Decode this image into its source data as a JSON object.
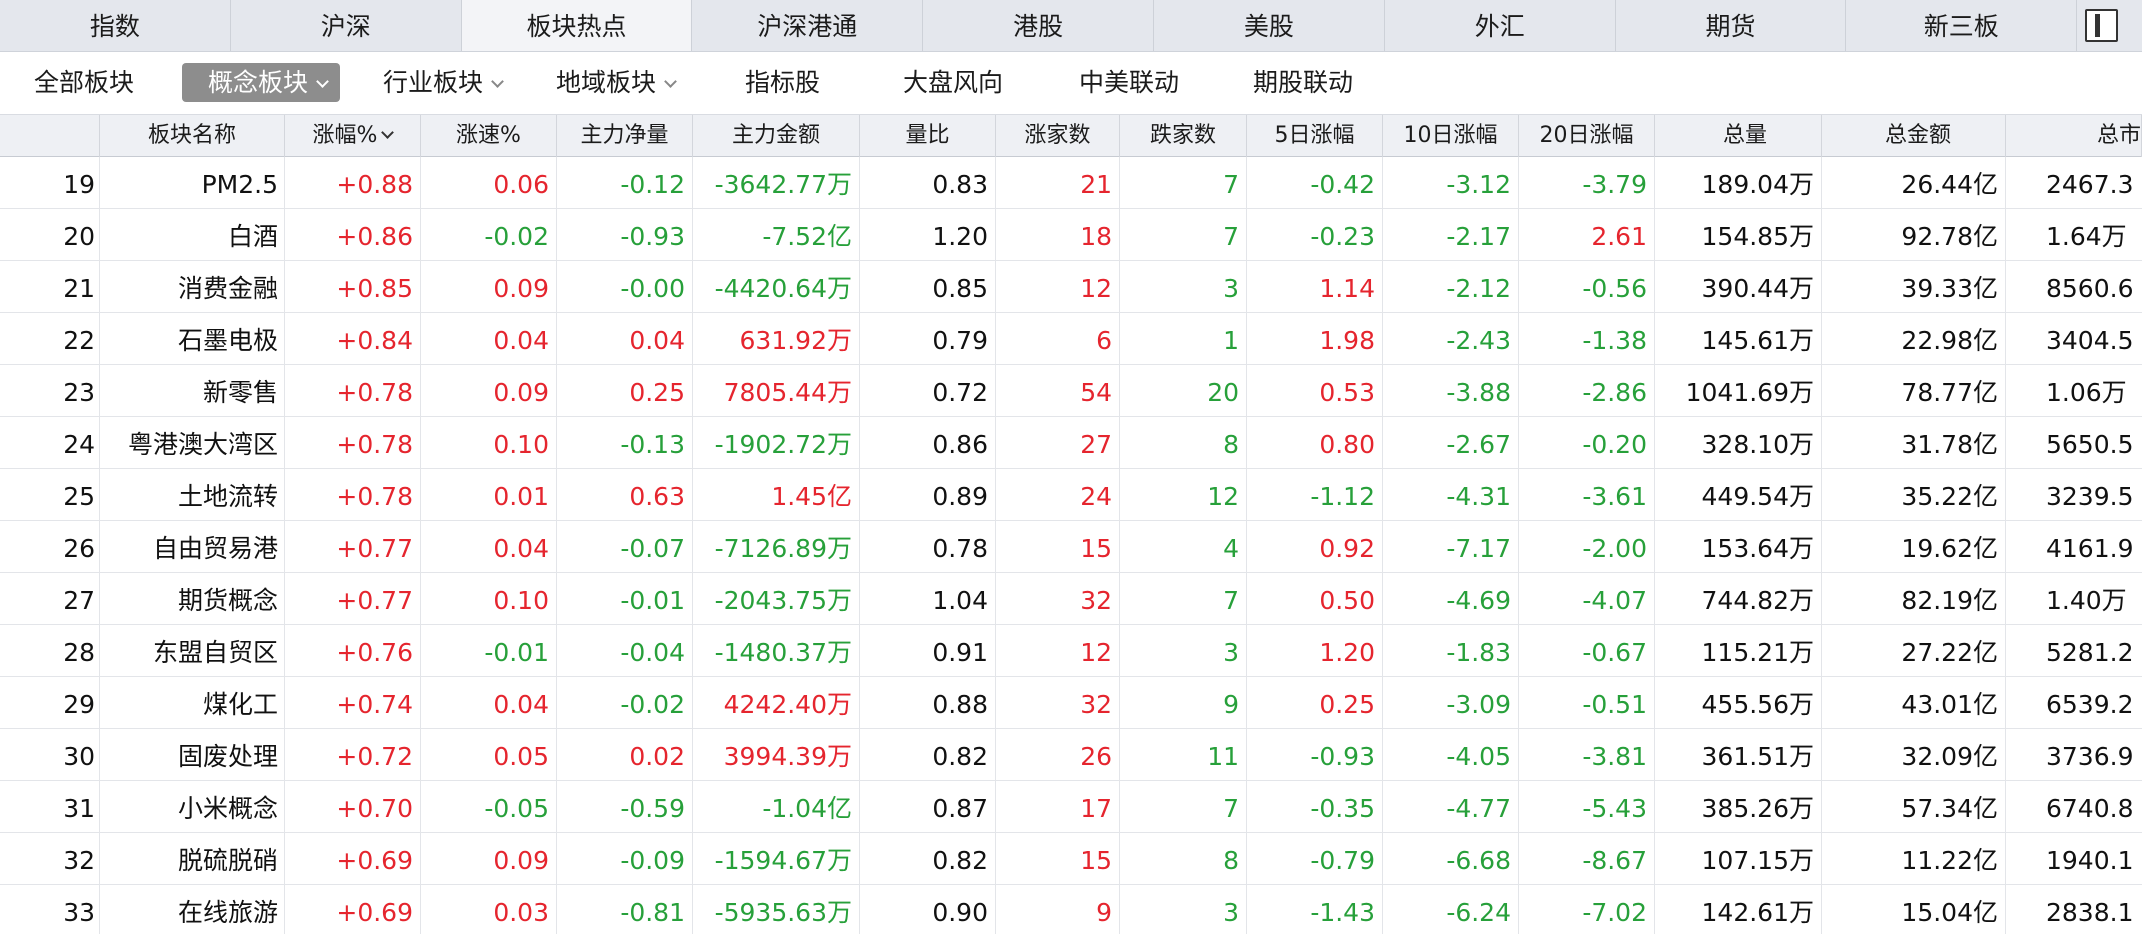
{
  "top_tabs": [
    {
      "label": "指数"
    },
    {
      "label": "沪深"
    },
    {
      "label": "板块热点",
      "active": true
    },
    {
      "label": "沪深港通"
    },
    {
      "label": "港股"
    },
    {
      "label": "美股"
    },
    {
      "label": "外汇"
    },
    {
      "label": "期货"
    },
    {
      "label": "新三板"
    }
  ],
  "window_icon": "sidebar-toggle-icon",
  "sub_tabs": [
    {
      "label": "全部板块",
      "dropdown": false
    },
    {
      "label": "概念板块",
      "dropdown": true,
      "active": true
    },
    {
      "label": "行业板块",
      "dropdown": true
    },
    {
      "label": "地域板块",
      "dropdown": true
    },
    {
      "label": "指标股",
      "dropdown": false
    },
    {
      "label": "大盘风向",
      "dropdown": false
    },
    {
      "label": "中美联动",
      "dropdown": false
    },
    {
      "label": "期股联动",
      "dropdown": false
    }
  ],
  "columns": [
    "",
    "板块名称",
    "涨幅%",
    "涨速%",
    "主力净量",
    "主力金额",
    "量比",
    "涨家数",
    "跌家数",
    "5日涨幅",
    "10日涨幅",
    "20日涨幅",
    "总量",
    "总金额",
    "总市"
  ],
  "sort_column_index": 2,
  "colors": {
    "up": "#e5252e",
    "down": "#27a03a",
    "neutral": "#111111"
  },
  "rows": [
    {
      "n": "19",
      "name": "PM2.5",
      "chg": "+0.88",
      "speed": "0.06",
      "net": "-0.12",
      "amt": "-3642.77万",
      "ratio": "0.83",
      "ups": "21",
      "downs": "7",
      "d5": "-0.42",
      "d10": "-3.12",
      "d20": "-3.79",
      "vol": "189.04万",
      "turnover": "26.44亿",
      "cap": "2467.3"
    },
    {
      "n": "20",
      "name": "白酒",
      "chg": "+0.86",
      "speed": "-0.02",
      "net": "-0.93",
      "amt": "-7.52亿",
      "ratio": "1.20",
      "ups": "18",
      "downs": "7",
      "d5": "-0.23",
      "d10": "-2.17",
      "d20": "2.61",
      "vol": "154.85万",
      "turnover": "92.78亿",
      "cap": "1.64万"
    },
    {
      "n": "21",
      "name": "消费金融",
      "chg": "+0.85",
      "speed": "0.09",
      "net": "-0.00",
      "amt": "-4420.64万",
      "ratio": "0.85",
      "ups": "12",
      "downs": "3",
      "d5": "1.14",
      "d10": "-2.12",
      "d20": "-0.56",
      "vol": "390.44万",
      "turnover": "39.33亿",
      "cap": "8560.6"
    },
    {
      "n": "22",
      "name": "石墨电极",
      "chg": "+0.84",
      "speed": "0.04",
      "net": "0.04",
      "amt": "631.92万",
      "ratio": "0.79",
      "ups": "6",
      "downs": "1",
      "d5": "1.98",
      "d10": "-2.43",
      "d20": "-1.38",
      "vol": "145.61万",
      "turnover": "22.98亿",
      "cap": "3404.5"
    },
    {
      "n": "23",
      "name": "新零售",
      "chg": "+0.78",
      "speed": "0.09",
      "net": "0.25",
      "amt": "7805.44万",
      "ratio": "0.72",
      "ups": "54",
      "downs": "20",
      "d5": "0.53",
      "d10": "-3.88",
      "d20": "-2.86",
      "vol": "1041.69万",
      "turnover": "78.77亿",
      "cap": "1.06万"
    },
    {
      "n": "24",
      "name": "粤港澳大湾区",
      "chg": "+0.78",
      "speed": "0.10",
      "net": "-0.13",
      "amt": "-1902.72万",
      "ratio": "0.86",
      "ups": "27",
      "downs": "8",
      "d5": "0.80",
      "d10": "-2.67",
      "d20": "-0.20",
      "vol": "328.10万",
      "turnover": "31.78亿",
      "cap": "5650.5"
    },
    {
      "n": "25",
      "name": "土地流转",
      "chg": "+0.78",
      "speed": "0.01",
      "net": "0.63",
      "amt": "1.45亿",
      "ratio": "0.89",
      "ups": "24",
      "downs": "12",
      "d5": "-1.12",
      "d10": "-4.31",
      "d20": "-3.61",
      "vol": "449.54万",
      "turnover": "35.22亿",
      "cap": "3239.5"
    },
    {
      "n": "26",
      "name": "自由贸易港",
      "chg": "+0.77",
      "speed": "0.04",
      "net": "-0.07",
      "amt": "-7126.89万",
      "ratio": "0.78",
      "ups": "15",
      "downs": "4",
      "d5": "0.92",
      "d10": "-7.17",
      "d20": "-2.00",
      "vol": "153.64万",
      "turnover": "19.62亿",
      "cap": "4161.9"
    },
    {
      "n": "27",
      "name": "期货概念",
      "chg": "+0.77",
      "speed": "0.10",
      "net": "-0.01",
      "amt": "-2043.75万",
      "ratio": "1.04",
      "ups": "32",
      "downs": "7",
      "d5": "0.50",
      "d10": "-4.69",
      "d20": "-4.07",
      "vol": "744.82万",
      "turnover": "82.19亿",
      "cap": "1.40万"
    },
    {
      "n": "28",
      "name": "东盟自贸区",
      "chg": "+0.76",
      "speed": "-0.01",
      "net": "-0.04",
      "amt": "-1480.37万",
      "ratio": "0.91",
      "ups": "12",
      "downs": "3",
      "d5": "1.20",
      "d10": "-1.83",
      "d20": "-0.67",
      "vol": "115.21万",
      "turnover": "27.22亿",
      "cap": "5281.2"
    },
    {
      "n": "29",
      "name": "煤化工",
      "chg": "+0.74",
      "speed": "0.04",
      "net": "-0.02",
      "amt": "4242.40万",
      "ratio": "0.88",
      "ups": "32",
      "downs": "9",
      "d5": "0.25",
      "d10": "-3.09",
      "d20": "-0.51",
      "vol": "455.56万",
      "turnover": "43.01亿",
      "cap": "6539.2"
    },
    {
      "n": "30",
      "name": "固废处理",
      "chg": "+0.72",
      "speed": "0.05",
      "net": "0.02",
      "amt": "3994.39万",
      "ratio": "0.82",
      "ups": "26",
      "downs": "11",
      "d5": "-0.93",
      "d10": "-4.05",
      "d20": "-3.81",
      "vol": "361.51万",
      "turnover": "32.09亿",
      "cap": "3736.9"
    },
    {
      "n": "31",
      "name": "小米概念",
      "chg": "+0.70",
      "speed": "-0.05",
      "net": "-0.59",
      "amt": "-1.04亿",
      "ratio": "0.87",
      "ups": "17",
      "downs": "7",
      "d5": "-0.35",
      "d10": "-4.77",
      "d20": "-5.43",
      "vol": "385.26万",
      "turnover": "57.34亿",
      "cap": "6740.8"
    },
    {
      "n": "32",
      "name": "脱硫脱硝",
      "chg": "+0.69",
      "speed": "0.09",
      "net": "-0.09",
      "amt": "-1594.67万",
      "ratio": "0.82",
      "ups": "15",
      "downs": "8",
      "d5": "-0.79",
      "d10": "-6.68",
      "d20": "-8.67",
      "vol": "107.15万",
      "turnover": "11.22亿",
      "cap": "1940.1"
    },
    {
      "n": "33",
      "name": "在线旅游",
      "chg": "+0.69",
      "speed": "0.03",
      "net": "-0.81",
      "amt": "-5935.63万",
      "ratio": "0.90",
      "ups": "9",
      "downs": "3",
      "d5": "-1.43",
      "d10": "-6.24",
      "d20": "-7.02",
      "vol": "142.61万",
      "turnover": "15.04亿",
      "cap": "2838.1"
    }
  ]
}
